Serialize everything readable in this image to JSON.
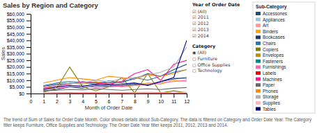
{
  "chart_data": {
    "type": "line",
    "title": "Sales by Region and Category",
    "x_label": "Month of Order Date",
    "y_label": "Sales",
    "x": [
      1,
      2,
      3,
      4,
      5,
      6,
      7,
      8,
      9,
      10,
      11,
      12
    ],
    "xlim": [
      0,
      12
    ],
    "xticks": [
      0,
      1,
      2,
      3,
      4,
      5,
      6,
      7,
      8,
      9,
      10,
      11,
      12
    ],
    "ylim": [
      0,
      60000
    ],
    "yticks": [
      {
        "value": 0,
        "label": "$0"
      },
      {
        "value": 5000,
        "label": "$5,000"
      },
      {
        "value": 10000,
        "label": "$10,000"
      },
      {
        "value": 15000,
        "label": "$15,000"
      },
      {
        "value": 20000,
        "label": "$20,000"
      },
      {
        "value": 25000,
        "label": "$25,000"
      },
      {
        "value": 30000,
        "label": "$30,000"
      },
      {
        "value": 35000,
        "label": "$35,000"
      },
      {
        "value": 40000,
        "label": "$40,000"
      },
      {
        "value": 45000,
        "label": "$45,000"
      },
      {
        "value": 50000,
        "label": "$50,000"
      },
      {
        "value": 55000,
        "label": "$55,000"
      },
      {
        "value": 60000,
        "label": "$60,000"
      }
    ],
    "grid": false,
    "legend": "right",
    "legend_title": "Sub-Category",
    "annotations": [
      {
        "heading": "Year of Order Date",
        "items": [
          "☑ (All)",
          "☑ 2011",
          "☑ 2012",
          "☑ 2013",
          "☑ 2014"
        ]
      },
      {
        "heading": "Category",
        "items": [
          "◉ (All)",
          "○ Furniture",
          "○ Office Supplies",
          "○ Technology"
        ]
      }
    ],
    "footer": "The trend of Sum of Sales for Order Date Month. Color shows details about Sub-Category. The data is filtered on Category and Order Date Year. The Category filter keeps Furniture, Office Supplies and Technology. The Order Date Year filter keeps 2011, 2012, 2013 and 2014.",
    "series": [
      {
        "name": "Accessories",
        "color": "#1F4E79",
        "values": [
          5500,
          7000,
          7500,
          8000,
          8500,
          8000,
          9000,
          11000,
          15000,
          13000,
          18000,
          22000
        ]
      },
      {
        "name": "Appliances",
        "color": "#9DC3E6",
        "values": [
          3000,
          4000,
          5500,
          6000,
          5000,
          6500,
          5000,
          8000,
          7000,
          9000,
          12000,
          11000
        ]
      },
      {
        "name": "Art",
        "color": "#FF9999",
        "values": [
          500,
          800,
          600,
          700,
          600,
          500,
          600,
          800,
          900,
          700,
          800,
          900
        ]
      },
      {
        "name": "Binders",
        "color": "#FFA500",
        "values": [
          4000,
          5000,
          8000,
          7000,
          9000,
          7000,
          5000,
          6000,
          8000,
          7000,
          10000,
          9000
        ]
      },
      {
        "name": "Bookcases",
        "color": "#203864",
        "values": [
          2000,
          3000,
          5000,
          4000,
          6000,
          5500,
          6000,
          7000,
          6500,
          9000,
          11000,
          12000
        ]
      },
      {
        "name": "Chairs",
        "color": "#2E75B6",
        "values": [
          6000,
          8000,
          9000,
          8500,
          7000,
          9500,
          8000,
          12000,
          10000,
          13000,
          16000,
          18000
        ]
      },
      {
        "name": "Copiers",
        "color": "#808000",
        "values": [
          1000,
          4000,
          20000,
          5000,
          2000,
          5000,
          12000,
          500,
          15000,
          500,
          2000,
          500
        ]
      },
      {
        "name": "Envelopes",
        "color": "#BF9000",
        "values": [
          400,
          500,
          700,
          600,
          800,
          500,
          400,
          500,
          600,
          700,
          600,
          700
        ]
      },
      {
        "name": "Fasteners",
        "color": "#008B8B",
        "values": [
          100,
          150,
          200,
          180,
          150,
          120,
          200,
          180,
          150,
          200,
          180,
          200
        ]
      },
      {
        "name": "Furnishings",
        "color": "#FF69B4",
        "values": [
          3500,
          4000,
          5000,
          5500,
          4500,
          5000,
          5500,
          6000,
          7000,
          8000,
          9000,
          10000
        ]
      },
      {
        "name": "Labels",
        "color": "#FF0000",
        "values": [
          200,
          300,
          400,
          350,
          300,
          400,
          350,
          300,
          400,
          350,
          450,
          400
        ]
      },
      {
        "name": "Machines",
        "color": "#FF1493",
        "values": [
          4000,
          6000,
          7000,
          9000,
          8000,
          7000,
          9000,
          15000,
          18000,
          10000,
          22000,
          25000
        ]
      },
      {
        "name": "Paper",
        "color": "#696969",
        "values": [
          2000,
          2500,
          3000,
          2800,
          3500,
          3000,
          2500,
          3000,
          3500,
          3000,
          4000,
          4500
        ]
      },
      {
        "name": "Phones",
        "color": "#FF8C00",
        "values": [
          8000,
          10000,
          12000,
          11000,
          10000,
          13000,
          12000,
          11000,
          14000,
          13000,
          15000,
          18000
        ]
      },
      {
        "name": "Storage",
        "color": "#B0B0B0",
        "values": [
          5000,
          6000,
          7500,
          8000,
          10000,
          9000,
          11000,
          12000,
          14000,
          16000,
          20000,
          35000
        ]
      },
      {
        "name": "Supplies",
        "color": "#FFB6C1",
        "values": [
          300,
          400,
          500,
          600,
          500,
          400,
          500,
          400,
          600,
          500,
          700,
          600
        ]
      },
      {
        "name": "Tables",
        "color": "#000080",
        "values": [
          3000,
          5000,
          6000,
          5500,
          7000,
          6500,
          7000,
          8000,
          6000,
          9000,
          12000,
          40000
        ]
      }
    ]
  }
}
